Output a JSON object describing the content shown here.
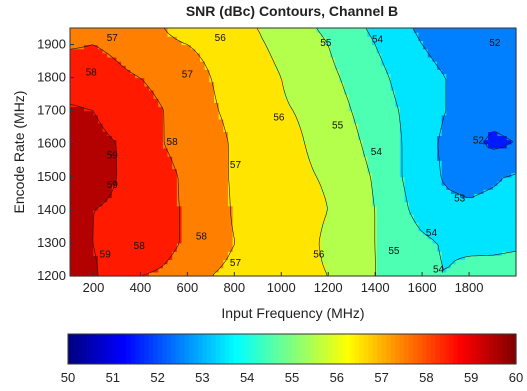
{
  "chart_data": {
    "type": "contour",
    "title": "SNR (dBc) Contours, Channel B",
    "xlabel": "Input Frequency (MHz)",
    "ylabel": "Encode Rate (MHz)",
    "xlim": [
      100,
      2000
    ],
    "ylim": [
      1200,
      1950
    ],
    "x_ticks": [
      200,
      400,
      600,
      800,
      1000,
      1200,
      1400,
      1600,
      1800
    ],
    "y_ticks": [
      1200,
      1300,
      1400,
      1500,
      1600,
      1700,
      1800,
      1900
    ],
    "colorbar": {
      "min": 50,
      "max": 60,
      "ticks": [
        50,
        51,
        52,
        53,
        54,
        55,
        56,
        57,
        58,
        59,
        60
      ],
      "colormap": "jet"
    },
    "contour_levels": [
      52,
      53,
      54,
      55,
      56,
      57,
      58,
      59
    ],
    "snr_grid": {
      "x": [
        100,
        200,
        300,
        400,
        500,
        600,
        700,
        800,
        900,
        1000,
        1100,
        1200,
        1300,
        1400,
        1500,
        1600,
        1700,
        1800,
        1900,
        2000
      ],
      "y": [
        1200,
        1300,
        1400,
        1500,
        1600,
        1700,
        1800,
        1900,
        1950
      ],
      "z": [
        [
          59.3,
          59.1,
          58.6,
          58.0,
          57.9,
          57.7,
          57.0,
          56.8,
          56.7,
          56.4,
          56.2,
          56.0,
          55.4,
          55.0,
          54.8,
          54.2,
          54.0,
          54.3,
          54.5,
          54.6
        ],
        [
          59.1,
          59.0,
          58.7,
          58.5,
          58.2,
          57.9,
          57.4,
          57.0,
          56.8,
          56.6,
          56.3,
          55.8,
          55.3,
          55.0,
          54.6,
          54.2,
          53.9,
          53.8,
          53.7,
          53.8
        ],
        [
          59.2,
          59.0,
          58.9,
          58.6,
          58.2,
          57.9,
          57.5,
          56.9,
          56.6,
          56.5,
          56.3,
          56.0,
          55.5,
          55.0,
          54.3,
          53.6,
          53.2,
          53.1,
          53.2,
          53.3
        ],
        [
          59.4,
          59.3,
          59.0,
          58.7,
          58.3,
          57.8,
          57.3,
          56.9,
          56.7,
          56.5,
          56.1,
          55.9,
          55.4,
          54.9,
          54.1,
          53.4,
          52.9,
          52.8,
          52.9,
          53.1
        ],
        [
          59.3,
          59.2,
          59.0,
          58.6,
          58.0,
          57.6,
          57.3,
          56.9,
          56.6,
          56.3,
          56.0,
          55.7,
          55.2,
          54.7,
          54.1,
          53.4,
          52.8,
          52.3,
          51.8,
          52.0
        ],
        [
          59.1,
          59.0,
          58.7,
          58.4,
          58.0,
          57.5,
          57.1,
          56.8,
          56.5,
          56.1,
          55.9,
          55.4,
          55.0,
          54.5,
          54.0,
          53.5,
          53.0,
          52.6,
          52.3,
          52.4
        ],
        [
          58.6,
          58.5,
          58.2,
          58.0,
          57.7,
          57.4,
          57.0,
          56.7,
          56.3,
          56.0,
          55.6,
          55.2,
          54.8,
          54.3,
          53.8,
          53.4,
          53.0,
          52.7,
          52.5,
          52.4
        ],
        [
          57.9,
          58.0,
          57.8,
          57.4,
          57.1,
          57.0,
          56.8,
          56.5,
          56.1,
          55.8,
          55.4,
          55.0,
          54.5,
          54.0,
          53.5,
          53.0,
          52.6,
          52.4,
          52.2,
          52.1
        ],
        [
          57.5,
          57.8,
          57.5,
          57.2,
          57.0,
          56.8,
          56.6,
          56.2,
          56.0,
          55.6,
          55.2,
          54.8,
          54.3,
          53.8,
          53.3,
          52.8,
          52.5,
          52.3,
          52.1,
          52.0
        ]
      ]
    },
    "contour_labels": [
      {
        "text": "57",
        "x": 280,
        "y": 1920
      },
      {
        "text": "56",
        "x": 740,
        "y": 1920
      },
      {
        "text": "55",
        "x": 1190,
        "y": 1905
      },
      {
        "text": "54",
        "x": 1410,
        "y": 1915
      },
      {
        "text": "52",
        "x": 1910,
        "y": 1905
      },
      {
        "text": "58",
        "x": 190,
        "y": 1815
      },
      {
        "text": "57",
        "x": 600,
        "y": 1810
      },
      {
        "text": "56",
        "x": 990,
        "y": 1680
      },
      {
        "text": "55",
        "x": 1240,
        "y": 1655
      },
      {
        "text": "52",
        "x": 1840,
        "y": 1610
      },
      {
        "text": "58",
        "x": 535,
        "y": 1605
      },
      {
        "text": "59",
        "x": 280,
        "y": 1565
      },
      {
        "text": "54",
        "x": 1405,
        "y": 1575
      },
      {
        "text": "57",
        "x": 805,
        "y": 1535
      },
      {
        "text": "59",
        "x": 280,
        "y": 1475
      },
      {
        "text": "53",
        "x": 1760,
        "y": 1435
      },
      {
        "text": "54",
        "x": 1640,
        "y": 1330
      },
      {
        "text": "58",
        "x": 660,
        "y": 1320
      },
      {
        "text": "59",
        "x": 250,
        "y": 1265
      },
      {
        "text": "58",
        "x": 395,
        "y": 1290
      },
      {
        "text": "57",
        "x": 805,
        "y": 1240
      },
      {
        "text": "56",
        "x": 1160,
        "y": 1265
      },
      {
        "text": "55",
        "x": 1480,
        "y": 1275
      },
      {
        "text": "54",
        "x": 1670,
        "y": 1220
      }
    ]
  }
}
